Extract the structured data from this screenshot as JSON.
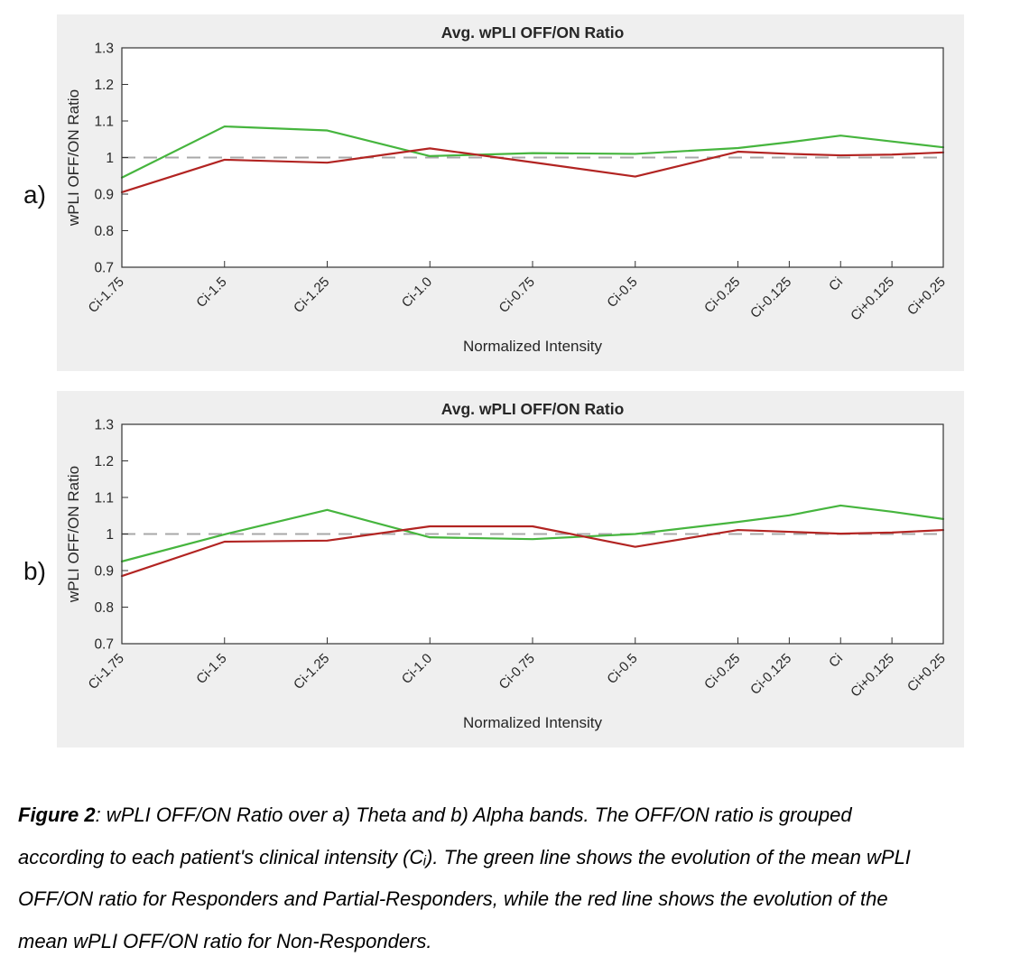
{
  "figure": {
    "panel_a_label": "a)",
    "panel_b_label": "b)",
    "caption": {
      "figure_label": "Figure 2",
      "line1_rest": ": wPLI OFF/ON Ratio over a) Theta and b) Alpha bands. The OFF/ON ratio is grouped",
      "line2": "according to each patient's clinical intensity (Cᵢ). The green line shows the evolution of the mean wPLI",
      "line3": "OFF/ON ratio for Responders and Partial-Responders, while the red line shows the evolution of the",
      "line4": "mean wPLI OFF/ON ratio for Non-Responders."
    }
  },
  "colors": {
    "responders_green": "#46b53e",
    "non_responders_red": "#b22422",
    "reference_gray": "#a8a8a8",
    "panel_background": "#efefef",
    "axis": "#333333"
  },
  "chart_data": [
    {
      "type": "line",
      "panel": "a",
      "band": "Theta",
      "title": "Avg. wPLI OFF/ON Ratio",
      "xlabel": "Normalized Intensity",
      "ylabel": "wPLI OFF/ON Ratio",
      "categories": [
        "Ci-1.75",
        "Ci-1.5",
        "Ci-1.25",
        "Ci-1.0",
        "Ci-0.75",
        "Ci-0.5",
        "Ci-0.25",
        "Ci-0.125",
        "Ci",
        "Ci+0.125",
        "Ci+0.25"
      ],
      "x": [
        -1.75,
        -1.5,
        -1.25,
        -1.0,
        -0.75,
        -0.5,
        -0.25,
        -0.125,
        0,
        0.125,
        0.25
      ],
      "ylim": [
        0.7,
        1.3
      ],
      "yticks": [
        0.7,
        0.8,
        0.9,
        1,
        1.1,
        1.2,
        1.3
      ],
      "grid": false,
      "legend": "none",
      "reference_line": 1.0,
      "reference_line_color": "#a8a8a8",
      "series": [
        {
          "id": "responders",
          "name": "Responders and Partial-Responders",
          "color": "#46b53e",
          "values": [
            0.945,
            1.085,
            1.074,
            1.004,
            1.012,
            1.01,
            1.026,
            1.042,
            1.06,
            1.044,
            1.028
          ]
        },
        {
          "id": "non-responders",
          "name": "Non-Responders",
          "color": "#b22422",
          "values": [
            0.905,
            0.994,
            0.986,
            1.025,
            0.987,
            0.948,
            1.016,
            1.01,
            1.006,
            1.008,
            1.014
          ]
        }
      ]
    },
    {
      "type": "line",
      "panel": "b",
      "band": "Alpha",
      "title": "Avg. wPLI OFF/ON Ratio",
      "xlabel": "Normalized Intensity",
      "ylabel": "wPLI OFF/ON Ratio",
      "categories": [
        "Ci-1.75",
        "Ci-1.5",
        "Ci-1.25",
        "Ci-1.0",
        "Ci-0.75",
        "Ci-0.5",
        "Ci-0.25",
        "Ci-0.125",
        "Ci",
        "Ci+0.125",
        "Ci+0.25"
      ],
      "x": [
        -1.75,
        -1.5,
        -1.25,
        -1.0,
        -0.75,
        -0.5,
        -0.25,
        -0.125,
        0,
        0.125,
        0.25
      ],
      "ylim": [
        0.7,
        1.3
      ],
      "yticks": [
        0.7,
        0.8,
        0.9,
        1,
        1.1,
        1.2,
        1.3
      ],
      "grid": false,
      "legend": "none",
      "reference_line": 1.0,
      "reference_line_color": "#a8a8a8",
      "series": [
        {
          "id": "responders",
          "name": "Responders and Partial-Responders",
          "color": "#46b53e",
          "values": [
            0.925,
            0.999,
            1.066,
            0.991,
            0.986,
            1.0,
            1.033,
            1.051,
            1.078,
            1.061,
            1.041
          ]
        },
        {
          "id": "non-responders",
          "name": "Non-Responders",
          "color": "#b22422",
          "values": [
            0.885,
            0.979,
            0.982,
            1.021,
            1.021,
            0.965,
            1.011,
            1.006,
            1.001,
            1.004,
            1.011
          ]
        }
      ]
    }
  ]
}
